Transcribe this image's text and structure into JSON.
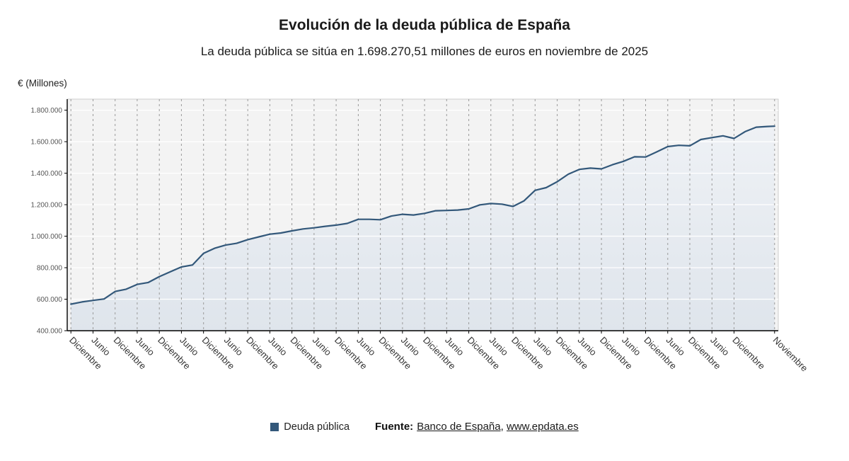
{
  "title": "Evolución de la deuda pública de España",
  "subtitle": "La deuda pública se sitúa en 1.698.270,51 millones de euros en noviembre de 2025",
  "y_axis_title": "€ (Millones)",
  "legend": {
    "label": "Deuda pública",
    "color": "#33587a"
  },
  "source": {
    "prefix": "Fuente:",
    "link1": "Banco de España",
    "separator": ", ",
    "link2": "www.epdata.es"
  },
  "chart_data": {
    "type": "area",
    "title": "Evolución de la deuda pública de España",
    "series_name": "Deuda pública",
    "ylabel": "€ (Millones)",
    "ylim": [
      400000,
      1870000
    ],
    "x_span_months": 191,
    "line_color": "#33587a",
    "plot_bg": "#f3f3f3",
    "area_fill_top": "#eef1f5",
    "area_fill_bottom": "#dfe5ec",
    "grid_h_color": "#ffffff",
    "grid_v_color": "#9a9a9a",
    "y_ticks": [
      [
        400000,
        "400.000"
      ],
      [
        600000,
        "600.000"
      ],
      [
        800000,
        "800.000"
      ],
      [
        1000000,
        "1.000.000"
      ],
      [
        1200000,
        "1.200.000"
      ],
      [
        1400000,
        "1.400.000"
      ],
      [
        1600000,
        "1.600.000"
      ],
      [
        1800000,
        "1.800.000"
      ]
    ],
    "x_ticks": [
      [
        0,
        "Diciembre"
      ],
      [
        6,
        "Junio"
      ],
      [
        12,
        "Diciembre"
      ],
      [
        18,
        "Junio"
      ],
      [
        24,
        "Diciembre"
      ],
      [
        30,
        "Junio"
      ],
      [
        36,
        "Diciembre"
      ],
      [
        42,
        "Junio"
      ],
      [
        48,
        "Diciembre"
      ],
      [
        54,
        "Junio"
      ],
      [
        60,
        "Diciembre"
      ],
      [
        66,
        "Junio"
      ],
      [
        72,
        "Diciembre"
      ],
      [
        78,
        "Junio"
      ],
      [
        84,
        "Diciembre"
      ],
      [
        90,
        "Junio"
      ],
      [
        96,
        "Diciembre"
      ],
      [
        102,
        "Junio"
      ],
      [
        108,
        "Diciembre"
      ],
      [
        114,
        "Junio"
      ],
      [
        120,
        "Diciembre"
      ],
      [
        126,
        "Junio"
      ],
      [
        132,
        "Diciembre"
      ],
      [
        138,
        "Junio"
      ],
      [
        144,
        "Diciembre"
      ],
      [
        150,
        "Junio"
      ],
      [
        156,
        "Diciembre"
      ],
      [
        162,
        "Junio"
      ],
      [
        168,
        "Diciembre"
      ],
      [
        174,
        "Junio"
      ],
      [
        180,
        "Diciembre"
      ],
      [
        191,
        "Noviembre"
      ]
    ],
    "points": [
      [
        0,
        568700
      ],
      [
        3,
        582300
      ],
      [
        6,
        592200
      ],
      [
        9,
        601400
      ],
      [
        12,
        649200
      ],
      [
        15,
        663300
      ],
      [
        18,
        693800
      ],
      [
        21,
        706300
      ],
      [
        24,
        743500
      ],
      [
        27,
        774500
      ],
      [
        30,
        804600
      ],
      [
        33,
        817200
      ],
      [
        36,
        890700
      ],
      [
        39,
        923300
      ],
      [
        42,
        943400
      ],
      [
        45,
        954900
      ],
      [
        48,
        978300
      ],
      [
        51,
        995800
      ],
      [
        54,
        1012600
      ],
      [
        57,
        1020300
      ],
      [
        60,
        1033700
      ],
      [
        63,
        1046200
      ],
      [
        66,
        1053200
      ],
      [
        69,
        1062400
      ],
      [
        72,
        1070100
      ],
      [
        75,
        1081000
      ],
      [
        78,
        1107200
      ],
      [
        81,
        1107000
      ],
      [
        84,
        1104600
      ],
      [
        87,
        1128000
      ],
      [
        90,
        1139000
      ],
      [
        93,
        1134400
      ],
      [
        96,
        1145100
      ],
      [
        99,
        1161700
      ],
      [
        102,
        1163500
      ],
      [
        105,
        1165800
      ],
      [
        108,
        1173300
      ],
      [
        111,
        1199000
      ],
      [
        114,
        1207400
      ],
      [
        117,
        1203300
      ],
      [
        120,
        1188800
      ],
      [
        123,
        1224500
      ],
      [
        126,
        1291000
      ],
      [
        129,
        1308200
      ],
      [
        132,
        1345800
      ],
      [
        135,
        1393500
      ],
      [
        138,
        1424200
      ],
      [
        141,
        1432300
      ],
      [
        144,
        1427200
      ],
      [
        147,
        1453900
      ],
      [
        150,
        1475500
      ],
      [
        153,
        1504000
      ],
      [
        156,
        1502800
      ],
      [
        159,
        1535300
      ],
      [
        162,
        1568600
      ],
      [
        165,
        1577000
      ],
      [
        168,
        1573800
      ],
      [
        171,
        1613700
      ],
      [
        174,
        1626000
      ],
      [
        177,
        1637100
      ],
      [
        180,
        1620700
      ],
      [
        183,
        1663500
      ],
      [
        186,
        1691800
      ],
      [
        189,
        1696600
      ],
      [
        191,
        1698270.51
      ]
    ]
  }
}
